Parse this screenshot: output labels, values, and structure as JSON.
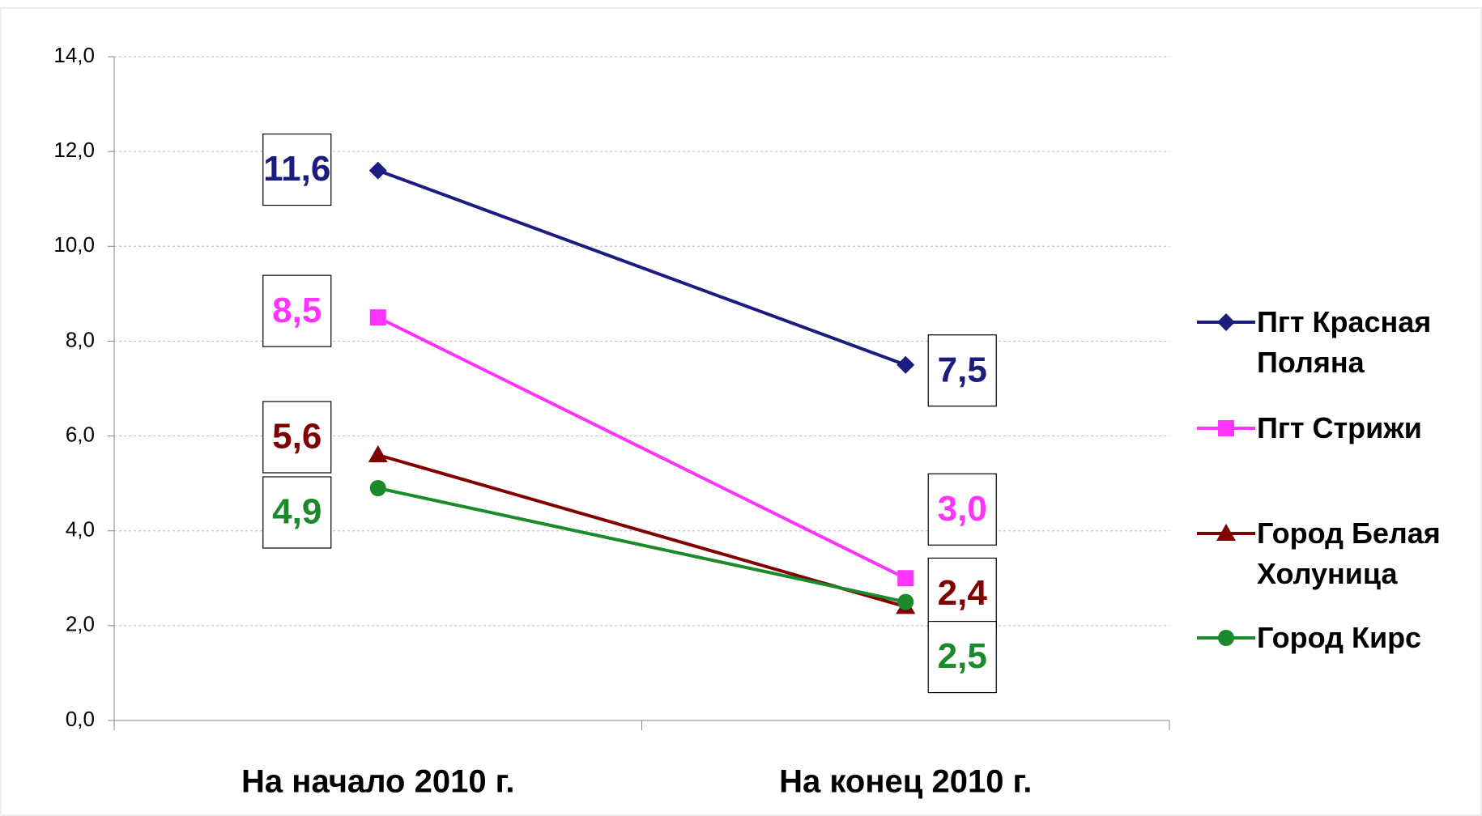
{
  "chart_data": {
    "type": "line",
    "categories": [
      "На начало 2010 г.",
      "На конец 2010 г."
    ],
    "ylim": [
      0,
      14
    ],
    "yticks": [
      {
        "value": 0,
        "label": "0,0"
      },
      {
        "value": 2,
        "label": "2,0"
      },
      {
        "value": 4,
        "label": "4,0"
      },
      {
        "value": 6,
        "label": "6,0"
      },
      {
        "value": 8,
        "label": "8,0"
      },
      {
        "value": 10,
        "label": "10,0"
      },
      {
        "value": 12,
        "label": "12,0"
      },
      {
        "value": 14,
        "label": "14,0"
      }
    ],
    "grid": true,
    "legend": "right",
    "series": [
      {
        "name": "Пгт Красная Поляна",
        "color": "#1c1c80",
        "marker": "diamond",
        "values": [
          11.6,
          7.5
        ],
        "value_labels": [
          "11,6",
          "7,5"
        ]
      },
      {
        "name": "Пгт Стрижи",
        "color": "#ff33ff",
        "marker": "square",
        "values": [
          8.5,
          3.0
        ],
        "value_labels": [
          "8,5",
          "3,0"
        ]
      },
      {
        "name": "Город Белая Холуница",
        "color": "#800000",
        "marker": "triangle",
        "values": [
          5.6,
          2.4
        ],
        "value_labels": [
          "5,6",
          "2,4"
        ]
      },
      {
        "name": "Город Кирс",
        "color": "#1a8a2a",
        "marker": "circle",
        "values": [
          4.9,
          2.5
        ],
        "value_labels": [
          "4,9",
          "2,5"
        ]
      }
    ]
  }
}
